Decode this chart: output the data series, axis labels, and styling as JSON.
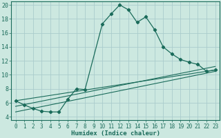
{
  "xlabel": "Humidex (Indice chaleur)",
  "bg_color": "#cce8e0",
  "grid_color": "#aacccc",
  "line_color": "#1a6b5a",
  "xlim": [
    -0.5,
    23.5
  ],
  "ylim": [
    3.5,
    20.5
  ],
  "xticks": [
    0,
    1,
    2,
    3,
    4,
    5,
    6,
    7,
    8,
    9,
    10,
    11,
    12,
    13,
    14,
    15,
    16,
    17,
    18,
    19,
    20,
    21,
    22,
    23
  ],
  "yticks": [
    4,
    6,
    8,
    10,
    12,
    14,
    16,
    18,
    20
  ],
  "main_series": {
    "x": [
      0,
      1,
      2,
      3,
      4,
      5,
      6,
      7,
      8,
      9,
      10,
      11,
      12,
      13,
      14,
      15,
      16,
      17,
      18,
      19,
      20,
      21,
      22,
      23
    ],
    "y": [
      6.3,
      5.7,
      5.2,
      4.8,
      4.7,
      4.7,
      6.5,
      8.0,
      7.9,
      null,
      17.3,
      18.7,
      20.0,
      19.3,
      17.5,
      18.3,
      16.5,
      14.0,
      13.0,
      12.2,
      11.8,
      11.5,
      10.5,
      10.7
    ]
  },
  "linear_series": [
    {
      "x": [
        0,
        23
      ],
      "y": [
        6.3,
        10.7
      ]
    },
    {
      "x": [
        0,
        23
      ],
      "y": [
        5.5,
        11.2
      ]
    },
    {
      "x": [
        0,
        23
      ],
      "y": [
        4.7,
        10.5
      ]
    }
  ]
}
